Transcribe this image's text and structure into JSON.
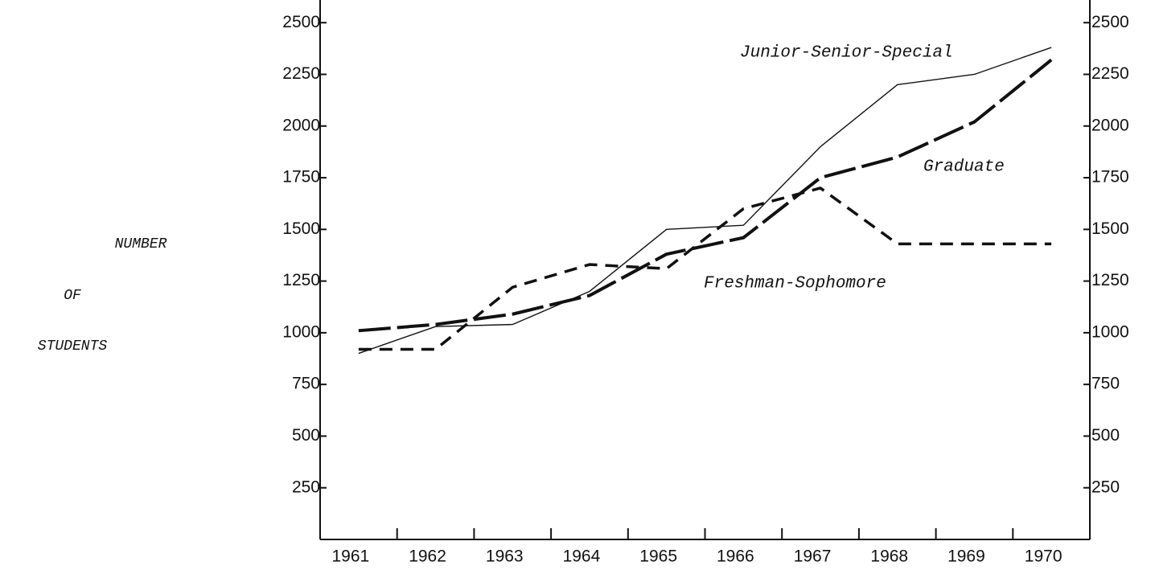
{
  "chart_data": {
    "type": "line",
    "ylabel": [
      "NUMBER",
      "OF",
      "STUDENTS"
    ],
    "categories": [
      "1961",
      "1962",
      "1963",
      "1964",
      "1965",
      "1966",
      "1967",
      "1968",
      "1969",
      "1970"
    ],
    "series": [
      {
        "name": "Junior-Senior-Special",
        "color": "#111111",
        "dash": "solid",
        "values": [
          900,
          1030,
          1040,
          1200,
          1500,
          1520,
          1900,
          2200,
          2250,
          2380
        ]
      },
      {
        "name": "Graduate",
        "color": "#111111",
        "dash": "long",
        "values": [
          1010,
          1040,
          1090,
          1180,
          1380,
          1460,
          1750,
          1850,
          2020,
          2320
        ]
      },
      {
        "name": "Freshman-Sophomore",
        "color": "#111111",
        "dash": "short",
        "values": [
          920,
          920,
          1220,
          1330,
          1310,
          1600,
          1700,
          1430,
          1430,
          1430
        ]
      }
    ],
    "ylim": [
      0,
      2600
    ],
    "yticks": [
      250,
      500,
      750,
      1000,
      1250,
      1500,
      1750,
      2000,
      2250,
      2500
    ],
    "y2lim": [
      0,
      2600
    ],
    "y2ticks": [
      250,
      500,
      750,
      1000,
      1250,
      1500,
      1750,
      2000,
      2250,
      2500
    ]
  }
}
